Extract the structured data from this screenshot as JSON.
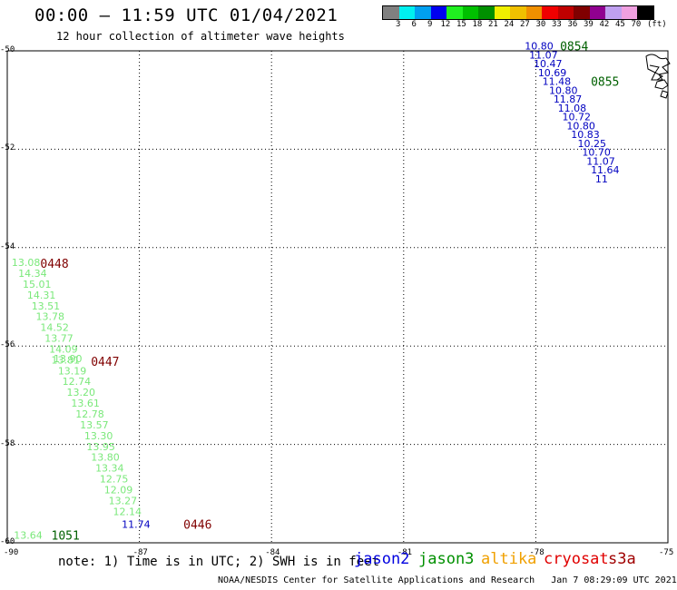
{
  "header": {
    "title": "00:00 – 11:59 UTC 01/04/2021",
    "subtitle": "12 hour collection of altimeter wave heights"
  },
  "legend": {
    "unit": "(ft)",
    "colors": [
      "#808080",
      "#00f0f0",
      "#00a0f0",
      "#0000f0",
      "#20f020",
      "#00c000",
      "#009000",
      "#f0f000",
      "#f0c000",
      "#f09000",
      "#f00000",
      "#c00000",
      "#800000",
      "#900090",
      "#c0a0f0",
      "#f0a0e0",
      "#000000"
    ],
    "labels": [
      "3",
      "6",
      "9",
      "12",
      "15",
      "18",
      "21",
      "24",
      "27",
      "30",
      "33",
      "36",
      "39",
      "42",
      "45",
      "70"
    ]
  },
  "axes": {
    "y_labels": [
      "-50",
      "-52",
      "-54",
      "-56",
      "-58",
      "-60"
    ],
    "x_labels": [
      "-90",
      "-87",
      "-84",
      "-81",
      "-78",
      "-75"
    ]
  },
  "tracks": [
    {
      "color": "#7ae87a",
      "points": [
        {
          "text": "13.08",
          "lon": -89.9,
          "lat": -54.3
        },
        {
          "text": "14.34",
          "lon": -89.75,
          "lat": -54.52
        },
        {
          "text": "15.01",
          "lon": -89.65,
          "lat": -54.74
        },
        {
          "text": "14.31",
          "lon": -89.55,
          "lat": -54.96
        },
        {
          "text": "13.51",
          "lon": -89.45,
          "lat": -55.18
        },
        {
          "text": "13.78",
          "lon": -89.35,
          "lat": -55.4
        },
        {
          "text": "14.52",
          "lon": -89.25,
          "lat": -55.62
        },
        {
          "text": "13.77",
          "lon": -89.15,
          "lat": -55.84
        },
        {
          "text": "14.09",
          "lon": -89.05,
          "lat": -56.06
        },
        {
          "text": "13.81",
          "lon": -89.0,
          "lat": -56.28
        },
        {
          "text": "13.90",
          "lon": -88.95,
          "lat": -56.25
        },
        {
          "text": "13.19",
          "lon": -88.85,
          "lat": -56.5
        },
        {
          "text": "12.74",
          "lon": -88.75,
          "lat": -56.72
        },
        {
          "text": "13.20",
          "lon": -88.65,
          "lat": -56.94
        },
        {
          "text": "13.61",
          "lon": -88.55,
          "lat": -57.16
        },
        {
          "text": "12.78",
          "lon": -88.45,
          "lat": -57.38
        },
        {
          "text": "13.57",
          "lon": -88.35,
          "lat": -57.6
        },
        {
          "text": "13.30",
          "lon": -88.25,
          "lat": -57.82
        },
        {
          "text": "13.95",
          "lon": -88.2,
          "lat": -58.04
        },
        {
          "text": "13.80",
          "lon": -88.1,
          "lat": -58.26
        },
        {
          "text": "13.34",
          "lon": -88.0,
          "lat": -58.48
        },
        {
          "text": "12.75",
          "lon": -87.9,
          "lat": -58.7
        },
        {
          "text": "12.09",
          "lon": -87.8,
          "lat": -58.92
        },
        {
          "text": "13.27",
          "lon": -87.7,
          "lat": -59.14
        },
        {
          "text": "12.14",
          "lon": -87.6,
          "lat": -59.36
        },
        {
          "text": "13.64",
          "lon": -89.85,
          "lat": -59.84
        }
      ]
    },
    {
      "color": "#0000c0",
      "points": [
        {
          "text": "11.74",
          "lon": -87.4,
          "lat": -59.62
        },
        {
          "text": "10.80",
          "lon": -78.25,
          "lat": -49.9
        },
        {
          "text": "11.07",
          "lon": -78.15,
          "lat": -50.08
        },
        {
          "text": "10.47",
          "lon": -78.05,
          "lat": -50.26
        },
        {
          "text": "10.69",
          "lon": -77.95,
          "lat": -50.44
        },
        {
          "text": "11.48",
          "lon": -77.85,
          "lat": -50.62
        },
        {
          "text": "10.80",
          "lon": -77.7,
          "lat": -50.8
        },
        {
          "text": "11.87",
          "lon": -77.6,
          "lat": -50.98
        },
        {
          "text": "11.08",
          "lon": -77.5,
          "lat": -51.16
        },
        {
          "text": "10.72",
          "lon": -77.4,
          "lat": -51.34
        },
        {
          "text": "10.80",
          "lon": -77.3,
          "lat": -51.52
        },
        {
          "text": "10.83",
          "lon": -77.2,
          "lat": -51.7
        },
        {
          "text": "10.25",
          "lon": -77.05,
          "lat": -51.88
        },
        {
          "text": "10.70",
          "lon": -76.95,
          "lat": -52.06
        },
        {
          "text": "11.07",
          "lon": -76.85,
          "lat": -52.24
        },
        {
          "text": "11.64",
          "lon": -76.75,
          "lat": -52.42
        },
        {
          "text": "11",
          "lon": -76.65,
          "lat": -52.6
        }
      ]
    }
  ],
  "time_labels": [
    {
      "text": "0448",
      "color": "#800000",
      "lon": -89.25,
      "lat": -54.32
    },
    {
      "text": "0447",
      "color": "#800000",
      "lon": -88.1,
      "lat": -56.31
    },
    {
      "text": "0446",
      "color": "#800000",
      "lon": -86.0,
      "lat": -59.62
    },
    {
      "text": "1051",
      "color": "#006000",
      "lon": -89.0,
      "lat": -59.84
    },
    {
      "text": "0854",
      "color": "#006000",
      "lon": -77.45,
      "lat": -49.9
    },
    {
      "text": "0855",
      "color": "#006000",
      "lon": -76.75,
      "lat": -50.62
    }
  ],
  "footer": {
    "note": "note: 1) Time is in UTC; 2) SWH is in feet",
    "satellites": [
      {
        "name": "jason2",
        "color": "#0000e0"
      },
      {
        "name": "jason3",
        "color": "#009000"
      },
      {
        "name": "altika",
        "color": "#f0a000"
      },
      {
        "name": "cryosat",
        "color": "#e00000"
      },
      {
        "name": "s3a",
        "color": "#a00000"
      }
    ],
    "credit": "NOAA/NESDIS Center for Satellite Applications and Research",
    "timestamp": "Jan  7 08:29:09 UTC 2021"
  }
}
